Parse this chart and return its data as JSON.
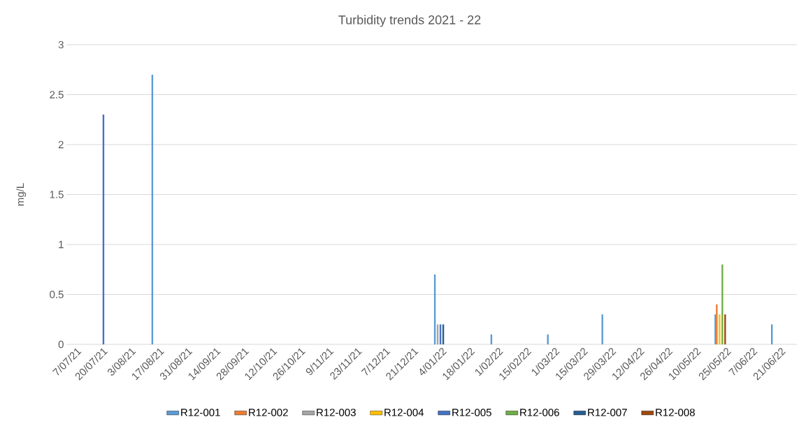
{
  "chart_data": {
    "type": "bar",
    "title": "Turbidity trends 2021 - 22",
    "ylabel": "mg/L",
    "series": [
      {
        "name": "R12-001",
        "color": "#5b9bd5",
        "x": [
          "2021-08-16",
          "2022-01-03",
          "2022-01-31",
          "2022-02-28",
          "2022-03-27",
          "2022-05-22",
          "2022-06-19"
        ],
        "values": [
          2.7,
          0.7,
          0.1,
          0.1,
          0.3,
          0.3,
          0.2
        ]
      },
      {
        "name": "R12-002",
        "color": "#ed7d31",
        "x": [
          "2022-05-22"
        ],
        "values": [
          0.4
        ]
      },
      {
        "name": "R12-003",
        "color": "#a5a5a5",
        "x": [
          "2022-01-03"
        ],
        "values": [
          0.2
        ]
      },
      {
        "name": "R12-004",
        "color": "#ffc000",
        "x": [
          "2022-05-22"
        ],
        "values": [
          0.3
        ]
      },
      {
        "name": "R12-005",
        "color": "#4472c4",
        "x": [
          "2021-07-20",
          "2022-01-03"
        ],
        "values": [
          2.3,
          0.2
        ]
      },
      {
        "name": "R12-006",
        "color": "#70ad47",
        "x": [
          "2022-05-22"
        ],
        "values": [
          0.8
        ]
      },
      {
        "name": "R12-007",
        "color": "#255e91",
        "x": [
          "2022-01-03"
        ],
        "values": [
          0.2
        ]
      },
      {
        "name": "R12-008",
        "color": "#9e480e",
        "x": [
          "2022-05-22"
        ],
        "values": [
          0.3
        ]
      }
    ],
    "xlim": [
      "2021-07-02",
      "2022-06-29"
    ],
    "xticks": [
      {
        "value": "2021-07-07",
        "label": "7/07/21"
      },
      {
        "value": "2021-07-20",
        "label": "20/07/21"
      },
      {
        "value": "2021-08-03",
        "label": "3/08/21"
      },
      {
        "value": "2021-08-17",
        "label": "17/08/21"
      },
      {
        "value": "2021-08-31",
        "label": "31/08/21"
      },
      {
        "value": "2021-09-14",
        "label": "14/09/21"
      },
      {
        "value": "2021-09-28",
        "label": "28/09/21"
      },
      {
        "value": "2021-10-12",
        "label": "12/10/21"
      },
      {
        "value": "2021-10-26",
        "label": "26/10/21"
      },
      {
        "value": "2021-11-09",
        "label": "9/11/21"
      },
      {
        "value": "2021-11-23",
        "label": "23/11/21"
      },
      {
        "value": "2021-12-07",
        "label": "7/12/21"
      },
      {
        "value": "2021-12-21",
        "label": "21/12/21"
      },
      {
        "value": "2022-01-04",
        "label": "4/01/22"
      },
      {
        "value": "2022-01-18",
        "label": "18/01/22"
      },
      {
        "value": "2022-02-01",
        "label": "1/02/22"
      },
      {
        "value": "2022-02-15",
        "label": "15/02/22"
      },
      {
        "value": "2022-03-01",
        "label": "1/03/22"
      },
      {
        "value": "2022-03-15",
        "label": "15/03/22"
      },
      {
        "value": "2022-03-29",
        "label": "29/03/22"
      },
      {
        "value": "2022-04-12",
        "label": "12/04/22"
      },
      {
        "value": "2022-04-26",
        "label": "26/04/22"
      },
      {
        "value": "2022-05-10",
        "label": "10/05/22"
      },
      {
        "value": "2022-05-25",
        "label": "25/05/22"
      },
      {
        "value": "2022-06-07",
        "label": "7/06/22"
      },
      {
        "value": "2022-06-21",
        "label": "21/06/22"
      }
    ],
    "ylim": [
      0,
      3
    ],
    "yticks": [
      0,
      0.5,
      1,
      1.5,
      2,
      2.5,
      3
    ],
    "grid": "y",
    "legend": "bottom"
  }
}
